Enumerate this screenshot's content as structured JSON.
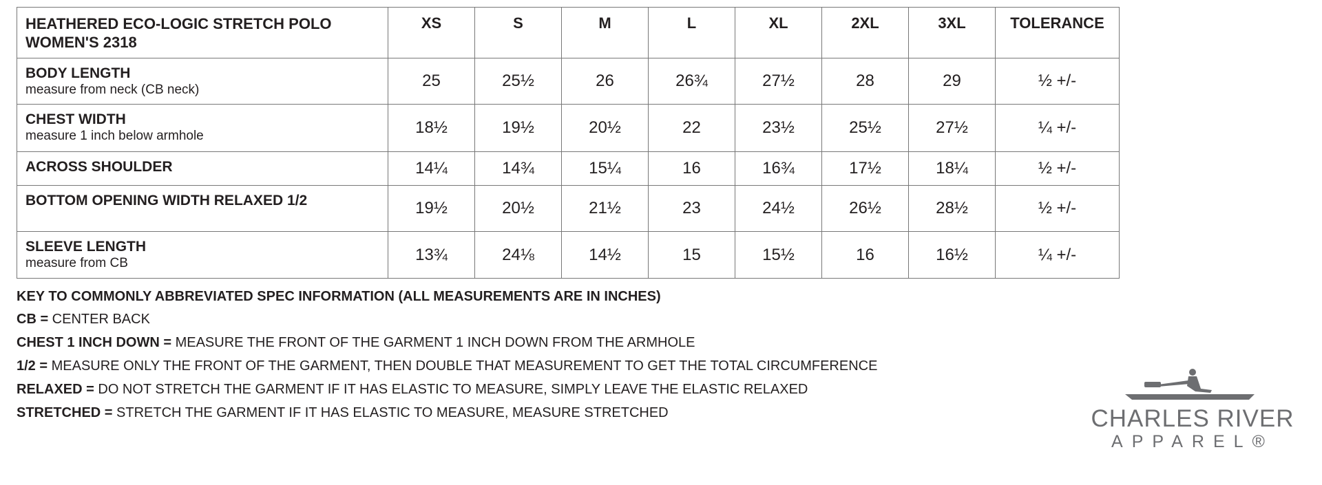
{
  "table": {
    "title_line1": "HEATHERED ECO-LOGIC STRETCH POLO",
    "title_line2": "WOMEN'S 2318",
    "sizes": [
      "XS",
      "S",
      "M",
      "L",
      "XL",
      "2XL",
      "3XL"
    ],
    "tolerance_header": "TOLERANCE",
    "rows": [
      {
        "label": "BODY LENGTH",
        "sub": "measure from neck (CB neck)",
        "values": [
          "25",
          "25½",
          "26",
          "26¾",
          "27½",
          "28",
          "29"
        ],
        "tolerance": "½ +/-"
      },
      {
        "label": "CHEST WIDTH",
        "sub": "measure 1 inch below armhole",
        "values": [
          "18½",
          "19½",
          "20½",
          "22",
          "23½",
          "25½",
          "27½"
        ],
        "tolerance": "¼ +/-"
      },
      {
        "label": "ACROSS SHOULDER",
        "sub": "",
        "values": [
          "14¼",
          "14¾",
          "15¼",
          "16",
          "16¾",
          "17½",
          "18¼"
        ],
        "tolerance": "½ +/-"
      },
      {
        "label": "BOTTOM OPENING WIDTH RELAXED 1/2",
        "sub": "",
        "values": [
          "19½",
          "20½",
          "21½",
          "23",
          "24½",
          "26½",
          "28½"
        ],
        "tolerance": "½ +/-"
      },
      {
        "label": "SLEEVE LENGTH",
        "sub": "measure from CB",
        "values": [
          "13¾",
          "24⅛",
          "14½",
          "15",
          "15½",
          "16",
          "16½"
        ],
        "tolerance": "¼ +/-"
      }
    ]
  },
  "key": {
    "heading": "KEY TO COMMONLY ABBREVIATED SPEC INFORMATION (ALL MEASUREMENTS ARE IN INCHES)",
    "items": [
      {
        "term": "CB =",
        "definition": " CENTER BACK"
      },
      {
        "term": "CHEST 1 INCH DOWN =",
        "definition": " MEASURE THE FRONT OF THE GARMENT 1 INCH DOWN FROM THE ARMHOLE"
      },
      {
        "term": "1/2 =",
        "definition": " MEASURE ONLY THE FRONT OF THE GARMENT, THEN DOUBLE THAT MEASUREMENT TO GET THE TOTAL CIRCUMFERENCE"
      },
      {
        "term": "RELAXED =",
        "definition": " DO NOT STRETCH THE GARMENT IF IT HAS ELASTIC TO MEASURE, SIMPLY LEAVE THE ELASTIC RELAXED"
      },
      {
        "term": "STRETCHED =",
        "definition": " STRETCH THE GARMENT IF IT HAS ELASTIC TO MEASURE, MEASURE STRETCHED"
      }
    ]
  },
  "logo": {
    "line1": "CHARLES RIVER",
    "line2": "APPAREL®",
    "icon": "rower-boat-icon",
    "color": "#6d6e71"
  }
}
